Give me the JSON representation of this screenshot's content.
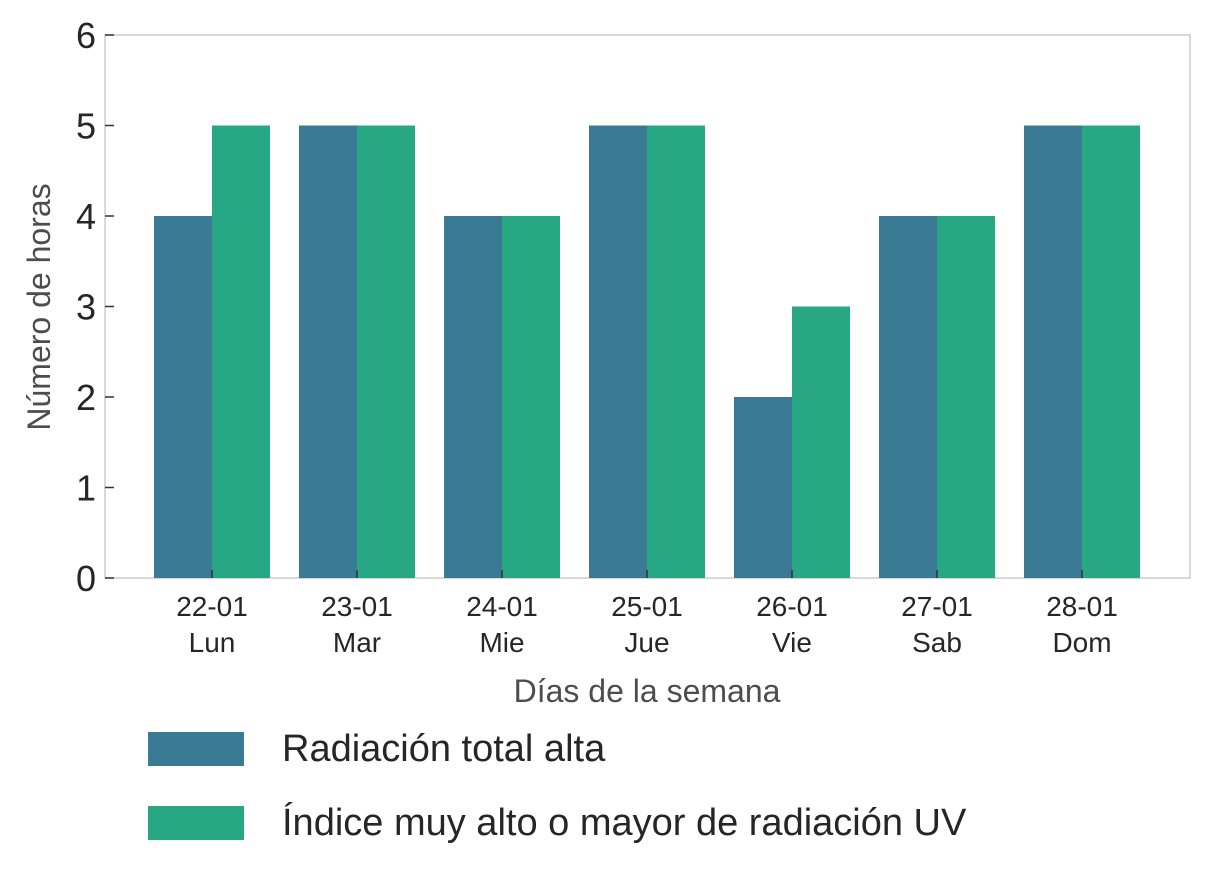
{
  "chart_data": {
    "type": "bar",
    "categories": [
      {
        "date": "22-01",
        "day": "Lun"
      },
      {
        "date": "23-01",
        "day": "Mar"
      },
      {
        "date": "24-01",
        "day": "Mie"
      },
      {
        "date": "25-01",
        "day": "Jue"
      },
      {
        "date": "26-01",
        "day": "Vie"
      },
      {
        "date": "27-01",
        "day": "Sab"
      },
      {
        "date": "28-01",
        "day": "Dom"
      }
    ],
    "series": [
      {
        "name": "Radiación total alta",
        "color": "#3a7a94",
        "values": [
          4,
          5,
          4,
          5,
          2,
          4,
          5
        ]
      },
      {
        "name": "Índice muy alto o mayor de radiación UV",
        "color": "#28a784",
        "values": [
          5,
          5,
          4,
          5,
          3,
          4,
          5
        ]
      }
    ],
    "xlabel": "Días de la semana",
    "ylabel": "Número de horas",
    "ylim": [
      0,
      6
    ],
    "yticks": [
      0,
      1,
      2,
      3,
      4,
      5,
      6
    ],
    "grid": false,
    "legend_position": "bottom-left"
  }
}
